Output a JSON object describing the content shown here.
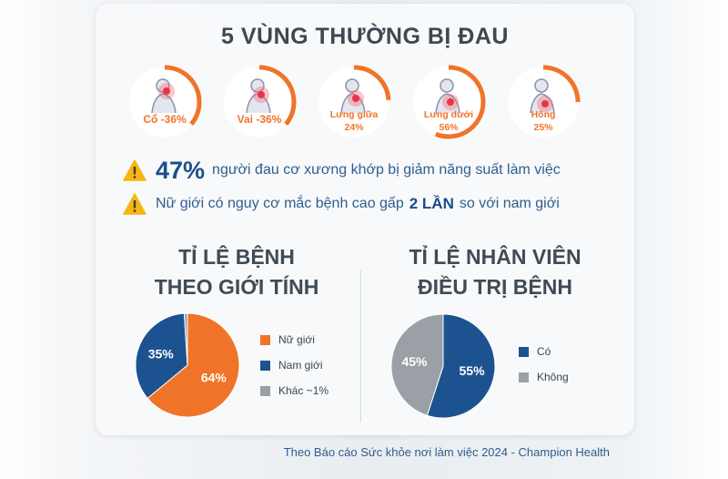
{
  "title": "5 VÙNG THƯỜNG BỊ ĐAU",
  "pain_regions": [
    {
      "label_lines": [
        "Cổ -36%"
      ],
      "percent": 36,
      "icon": "neck-pain-icon"
    },
    {
      "label_lines": [
        "Vai -36%"
      ],
      "percent": 36,
      "icon": "shoulder-pain-icon"
    },
    {
      "label_lines": [
        "Lưng giữa",
        "24%"
      ],
      "percent": 24,
      "icon": "mid-back-pain-icon"
    },
    {
      "label_lines": [
        "Lưng dưới",
        "56%"
      ],
      "percent": 56,
      "icon": "lower-back-pain-icon"
    },
    {
      "label_lines": [
        "Hông",
        "25%"
      ],
      "percent": 25,
      "icon": "hip-pain-icon"
    }
  ],
  "alerts": [
    {
      "icon": "warning-icon",
      "highlight": "47%",
      "text": "người đau cơ xương khớp bị giảm năng suất làm việc"
    },
    {
      "icon": "warning-icon",
      "text_before": "Nữ giới có nguy cơ mắc bệnh cao gấp",
      "strong": "2 LẦN",
      "text_after": "so với nam giới"
    }
  ],
  "section_gender": {
    "title_line1": "TỈ LỆ BỆNH",
    "title_line2": "THEO GIỚI TÍNH"
  },
  "section_treatment": {
    "title_line1": "TỈ LỆ NHÂN VIÊN",
    "title_line2": "ĐIỀU TRỊ BỆNH"
  },
  "source": "Theo Báo cáo Sức khỏe nơi làm việc 2024 - Champion Health",
  "colors": {
    "orange": "#f07428",
    "blue": "#1c5290",
    "gray": "#9aa0a5",
    "text_blue": "#2e5d91"
  },
  "chart_data": [
    {
      "type": "pie",
      "title": "TỈ LỆ BỆNH THEO GIỚI TÍNH",
      "slices": [
        {
          "name": "Nữ giới",
          "value": 64,
          "label": "64%",
          "color": "#f07428"
        },
        {
          "name": "Nam giới",
          "value": 35,
          "label": "35%",
          "color": "#1c5290"
        },
        {
          "name": "Khác ~1%",
          "value": 1,
          "label": "",
          "color": "#9aa0a5"
        }
      ],
      "legend_position": "right"
    },
    {
      "type": "pie",
      "title": "TỈ LỆ NHÂN VIÊN ĐIỀU TRỊ BỆNH",
      "slices": [
        {
          "name": "Có",
          "value": 55,
          "label": "55%",
          "color": "#1c5290"
        },
        {
          "name": "Không",
          "value": 45,
          "label": "45%",
          "color": "#9aa0a5"
        }
      ],
      "legend_position": "right"
    }
  ]
}
